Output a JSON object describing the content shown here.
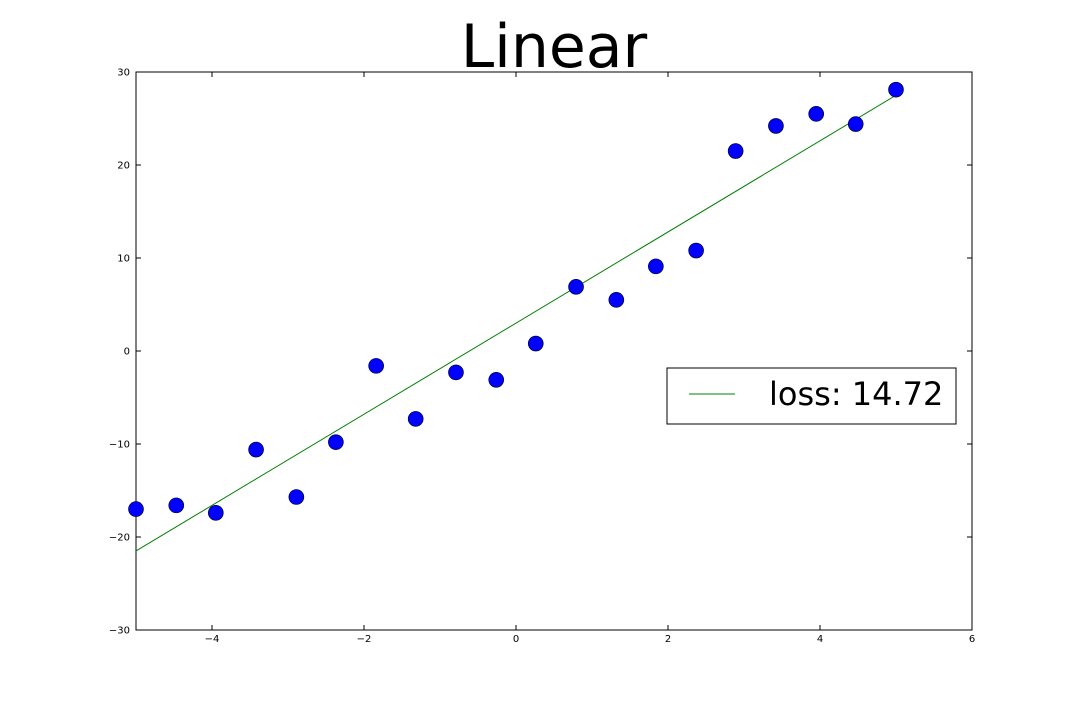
{
  "chart_data": {
    "type": "scatter",
    "title": "Linear",
    "xlabel": "",
    "ylabel": "",
    "xlim": [
      -5,
      6
    ],
    "ylim": [
      -30,
      30
    ],
    "x_ticks": [
      -4,
      -2,
      0,
      2,
      4,
      6
    ],
    "y_ticks": [
      -30,
      -20,
      -10,
      0,
      10,
      20,
      30
    ],
    "grid": false,
    "legend_position": "center-right",
    "series": [
      {
        "kind": "points",
        "color": "#0000ff",
        "x": [
          -5.0,
          -4.47,
          -3.95,
          -3.42,
          -2.89,
          -2.37,
          -1.84,
          -1.32,
          -0.79,
          -0.26,
          0.26,
          0.79,
          1.32,
          1.84,
          2.37,
          2.89,
          3.42,
          3.95,
          4.47,
          5.0
        ],
        "y": [
          -17.0,
          -16.6,
          -17.4,
          -10.6,
          -15.7,
          -9.8,
          -1.6,
          -7.3,
          -2.3,
          -3.1,
          0.8,
          6.9,
          5.5,
          9.1,
          10.8,
          21.5,
          24.2,
          25.5,
          24.4,
          28.1
        ]
      },
      {
        "kind": "line",
        "name": "loss: 14.72",
        "color": "#008000",
        "x": [
          -5.0,
          5.0
        ],
        "y": [
          -21.5,
          27.5
        ]
      }
    ]
  }
}
